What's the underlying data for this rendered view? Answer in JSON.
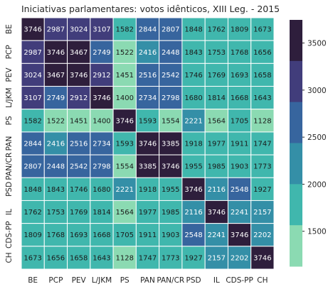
{
  "chart_data": {
    "type": "heatmap",
    "title": "Iniciativas parlamentares: votos idênticos, XIII Leg. - 2015",
    "x_labels": [
      "BE",
      "PCP",
      "PEV",
      "L/JKM",
      "PS",
      "PAN",
      "PAN/CR",
      "PSD",
      "IL",
      "CDS-PP",
      "CH"
    ],
    "y_labels": [
      "BE",
      "PCP",
      "PEV",
      "L/JKM",
      "PS",
      "PAN",
      "PAN/CR",
      "PSD",
      "IL",
      "CDS-PP",
      "CH"
    ],
    "values": [
      [
        3746,
        2987,
        3024,
        3107,
        1582,
        2844,
        2807,
        1848,
        1762,
        1809,
        1673
      ],
      [
        2987,
        3746,
        3467,
        2749,
        1522,
        2416,
        2448,
        1843,
        1753,
        1768,
        1656
      ],
      [
        3024,
        3467,
        3746,
        2912,
        1451,
        2516,
        2542,
        1746,
        1769,
        1693,
        1658
      ],
      [
        3107,
        2749,
        2912,
        3746,
        1400,
        2734,
        2798,
        1680,
        1814,
        1668,
        1643
      ],
      [
        1582,
        1522,
        1451,
        1400,
        3746,
        1593,
        1554,
        2221,
        1564,
        1705,
        1128
      ],
      [
        2844,
        2416,
        2516,
        2734,
        1593,
        3746,
        3385,
        1918,
        1977,
        1911,
        1747
      ],
      [
        2807,
        2448,
        2542,
        2798,
        1554,
        3385,
        3746,
        1955,
        1985,
        1903,
        1773
      ],
      [
        1848,
        1843,
        1746,
        1680,
        2221,
        1918,
        1955,
        3746,
        2116,
        2548,
        1927
      ],
      [
        1762,
        1753,
        1769,
        1814,
        1564,
        1977,
        1985,
        2116,
        3746,
        2241,
        2157
      ],
      [
        1809,
        1768,
        1693,
        1668,
        1705,
        1911,
        1903,
        2548,
        2241,
        3746,
        2202
      ],
      [
        1673,
        1656,
        1658,
        1643,
        1128,
        1747,
        1773,
        1927,
        2157,
        2202,
        3746
      ]
    ],
    "value_range": [
      1128,
      3746
    ],
    "colorbar": {
      "ticks": [
        1500,
        2000,
        2500,
        3000,
        3500
      ],
      "colors": [
        "#2e1e3c",
        "#413d7b",
        "#37659e",
        "#348fa7",
        "#40b7ad",
        "#8bdab2"
      ]
    },
    "binned": true,
    "grid": false,
    "legend": "colorbar-right",
    "cell_border_color": "#ffffff",
    "text_color_light": "#ffffff",
    "text_color_dark": "#1a1a1a"
  }
}
